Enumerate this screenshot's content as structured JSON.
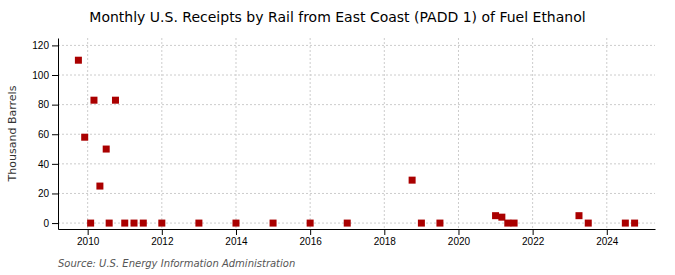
{
  "chart_data": {
    "type": "scatter",
    "title": "Monthly U.S. Receipts by Rail from East Coast (PADD 1) of Fuel Ethanol",
    "y_label": "Thousand Barrels",
    "annotations": [
      "Source: U.S. Energy Information Administration"
    ],
    "x": [
      2009.75,
      2009.92,
      2010.17,
      2010.33,
      2010.5,
      2010.75,
      2010.08,
      2010.58,
      2011.0,
      2011.25,
      2011.5,
      2012.0,
      2013.0,
      2014.0,
      2015.0,
      2016.0,
      2017.0,
      2018.75,
      2019.0,
      2019.5,
      2021.0,
      2021.17,
      2021.33,
      2021.5,
      2023.25,
      2023.5,
      2024.5,
      2024.75
    ],
    "values": [
      110,
      58,
      83,
      25,
      50,
      83,
      0,
      0,
      0,
      0,
      0,
      0,
      0,
      0,
      0,
      0,
      0,
      29,
      0,
      0,
      5,
      4,
      0,
      0,
      5,
      0,
      0,
      0
    ],
    "color": "#aa0000",
    "marker": "square",
    "xlim": [
      2009.2,
      2025.3
    ],
    "xticks": [
      2010,
      2012,
      2014,
      2016,
      2018,
      2020,
      2022,
      2024
    ],
    "ylim": [
      -4,
      125
    ],
    "yticks": [
      0,
      20,
      40,
      60,
      80,
      100,
      120
    ],
    "grid": true
  }
}
